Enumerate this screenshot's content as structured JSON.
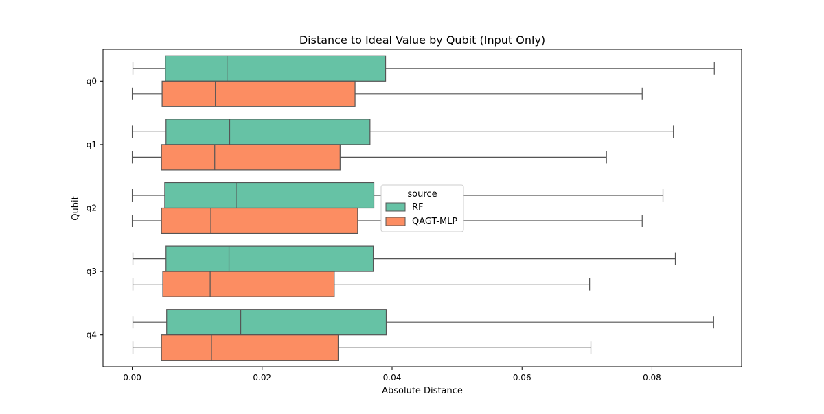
{
  "chart_data": {
    "type": "boxplot",
    "orientation": "horizontal",
    "title": "Distance to Ideal Value by Qubit (Input Only)",
    "xlabel": "Absolute Distance",
    "ylabel": "Qubit",
    "xlim": [
      -0.0045,
      0.0938
    ],
    "xticks": [
      "0.00",
      "0.02",
      "0.04",
      "0.06",
      "0.08"
    ],
    "xtick_values": [
      0.0,
      0.02,
      0.04,
      0.06,
      0.08
    ],
    "categories": [
      "q0",
      "q1",
      "q2",
      "q3",
      "q4"
    ],
    "legend": {
      "title": "source",
      "position": "center"
    },
    "grid": false,
    "series": [
      {
        "name": "RF",
        "color": "#66c2a5",
        "boxes": [
          {
            "whislo": 0.0001,
            "q1": 0.0051,
            "med": 0.0146,
            "q3": 0.039,
            "whishi": 0.0896
          },
          {
            "whislo": 0.0,
            "q1": 0.0052,
            "med": 0.015,
            "q3": 0.0366,
            "whishi": 0.0833
          },
          {
            "whislo": 0.0,
            "q1": 0.005,
            "med": 0.016,
            "q3": 0.0372,
            "whishi": 0.0817
          },
          {
            "whislo": 0.0001,
            "q1": 0.0052,
            "med": 0.0149,
            "q3": 0.0371,
            "whishi": 0.0836
          },
          {
            "whislo": 0.0001,
            "q1": 0.0053,
            "med": 0.0167,
            "q3": 0.0391,
            "whishi": 0.0895
          }
        ]
      },
      {
        "name": "QAGT-MLP",
        "color": "#fc8d62",
        "boxes": [
          {
            "whislo": 0.0,
            "q1": 0.0046,
            "med": 0.0128,
            "q3": 0.0343,
            "whishi": 0.0785
          },
          {
            "whislo": 0.0,
            "q1": 0.0045,
            "med": 0.0127,
            "q3": 0.032,
            "whishi": 0.073
          },
          {
            "whislo": 0.0,
            "q1": 0.0045,
            "med": 0.0121,
            "q3": 0.0347,
            "whishi": 0.0785
          },
          {
            "whislo": 0.0001,
            "q1": 0.0047,
            "med": 0.012,
            "q3": 0.0311,
            "whishi": 0.0704
          },
          {
            "whislo": 0.0001,
            "q1": 0.0045,
            "med": 0.0122,
            "q3": 0.0317,
            "whishi": 0.0706
          }
        ]
      }
    ]
  }
}
